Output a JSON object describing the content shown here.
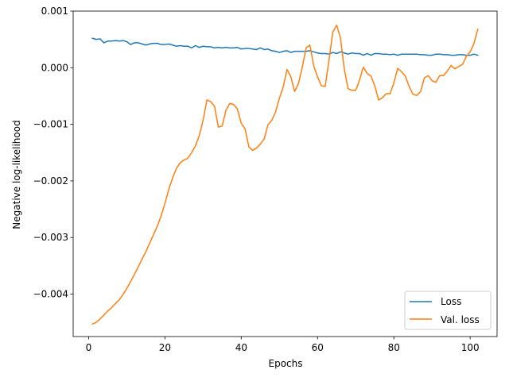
{
  "chart_data": {
    "type": "line",
    "title": "",
    "xlabel": "Epochs",
    "ylabel": "Negative log-likelihood",
    "xlim": [
      -4.05,
      107.05
    ],
    "ylim": [
      -0.00475,
      0.001
    ],
    "xticks": [
      0,
      20,
      40,
      60,
      80,
      100
    ],
    "xtick_labels": [
      "0",
      "20",
      "40",
      "60",
      "80",
      "100"
    ],
    "yticks": [
      -0.004,
      -0.003,
      -0.002,
      -0.001,
      0.0,
      0.001
    ],
    "ytick_labels": [
      "−0.004",
      "−0.003",
      "−0.002",
      "−0.001",
      "0.000",
      "0.001"
    ],
    "grid": false,
    "legend_position": "lower-right",
    "x": [
      1,
      2,
      3,
      4,
      5,
      6,
      7,
      8,
      9,
      10,
      11,
      12,
      13,
      14,
      15,
      16,
      17,
      18,
      19,
      20,
      21,
      22,
      23,
      24,
      25,
      26,
      27,
      28,
      29,
      30,
      31,
      32,
      33,
      34,
      35,
      36,
      37,
      38,
      39,
      40,
      41,
      42,
      43,
      44,
      45,
      46,
      47,
      48,
      49,
      50,
      51,
      52,
      53,
      54,
      55,
      56,
      57,
      58,
      59,
      60,
      61,
      62,
      63,
      64,
      65,
      66,
      67,
      68,
      69,
      70,
      71,
      72,
      73,
      74,
      75,
      76,
      77,
      78,
      79,
      80,
      81,
      82,
      83,
      84,
      85,
      86,
      87,
      88,
      89,
      90,
      91,
      92,
      93,
      94,
      95,
      96,
      97,
      98,
      99,
      100,
      101,
      102
    ],
    "series": [
      {
        "name": "Loss",
        "color": "#1f77b4",
        "values": [
          0.00052,
          0.0005,
          0.00051,
          0.00044,
          0.00047,
          0.00047,
          0.00048,
          0.00047,
          0.00048,
          0.00046,
          0.00041,
          0.00044,
          0.00044,
          0.00042,
          0.0004,
          0.00042,
          0.00043,
          0.00043,
          0.00041,
          0.00041,
          0.00042,
          0.0004,
          0.00038,
          0.00039,
          0.00038,
          0.00038,
          0.00035,
          0.00039,
          0.00036,
          0.00038,
          0.00037,
          0.00037,
          0.00035,
          0.00036,
          0.00035,
          0.00036,
          0.00035,
          0.00035,
          0.00036,
          0.00033,
          0.00034,
          0.00034,
          0.00033,
          0.00032,
          0.00035,
          0.00032,
          0.00033,
          0.0003,
          0.00029,
          0.00027,
          0.00029,
          0.0003,
          0.00027,
          0.00029,
          0.00029,
          0.00029,
          0.00029,
          0.0003,
          0.00028,
          0.00026,
          0.00025,
          0.00025,
          0.00024,
          0.00027,
          0.00025,
          0.00028,
          0.00026,
          0.00024,
          0.00026,
          0.00025,
          0.00025,
          0.00022,
          0.00025,
          0.00022,
          0.00025,
          0.00025,
          0.00024,
          0.00024,
          0.00023,
          0.00024,
          0.00022,
          0.00024,
          0.00024,
          0.00024,
          0.00024,
          0.00024,
          0.00023,
          0.00023,
          0.00022,
          0.00022,
          0.00024,
          0.00024,
          0.00023,
          0.00023,
          0.00022,
          0.00022,
          0.00023,
          0.00023,
          0.00022,
          0.00022,
          0.00024,
          0.00022
        ]
      },
      {
        "name": "Val. loss",
        "color": "#ff7f0e",
        "values": [
          -0.00453,
          -0.0045,
          -0.00444,
          -0.00437,
          -0.0043,
          -0.00424,
          -0.00417,
          -0.0041,
          -0.00401,
          -0.0039,
          -0.00378,
          -0.00365,
          -0.00352,
          -0.00338,
          -0.00325,
          -0.0031,
          -0.00295,
          -0.0028,
          -0.00262,
          -0.0024,
          -0.00215,
          -0.00195,
          -0.00178,
          -0.00168,
          -0.00163,
          -0.0016,
          -0.0015,
          -0.00138,
          -0.0012,
          -0.00093,
          -0.00057,
          -0.0006,
          -0.00068,
          -0.00105,
          -0.00103,
          -0.00075,
          -0.00063,
          -0.00065,
          -0.00073,
          -0.00098,
          -0.00108,
          -0.0014,
          -0.00146,
          -0.00142,
          -0.00135,
          -0.00126,
          -0.00101,
          -0.00093,
          -0.00078,
          -0.00054,
          -0.00034,
          -3e-05,
          -0.00016,
          -0.00042,
          -0.00028,
          1e-05,
          0.00035,
          0.0004,
          3e-05,
          -0.00016,
          -0.00032,
          -0.00033,
          0.00013,
          0.00063,
          0.00075,
          0.00053,
          -2e-05,
          -0.00037,
          -0.0004,
          -0.0004,
          -0.00022,
          1e-05,
          -0.0001,
          -0.00015,
          -0.00032,
          -0.00057,
          -0.00053,
          -0.00046,
          -0.00046,
          -0.00027,
          -1e-05,
          -7e-05,
          -0.00015,
          -0.00033,
          -0.00047,
          -0.00049,
          -0.00042,
          -0.00018,
          -0.00014,
          -0.00023,
          -0.00026,
          -0.00014,
          -0.00014,
          -6e-05,
          4e-05,
          -2e-05,
          2e-05,
          6e-05,
          0.0002,
          0.00028,
          0.00043,
          0.00068
        ]
      }
    ]
  }
}
